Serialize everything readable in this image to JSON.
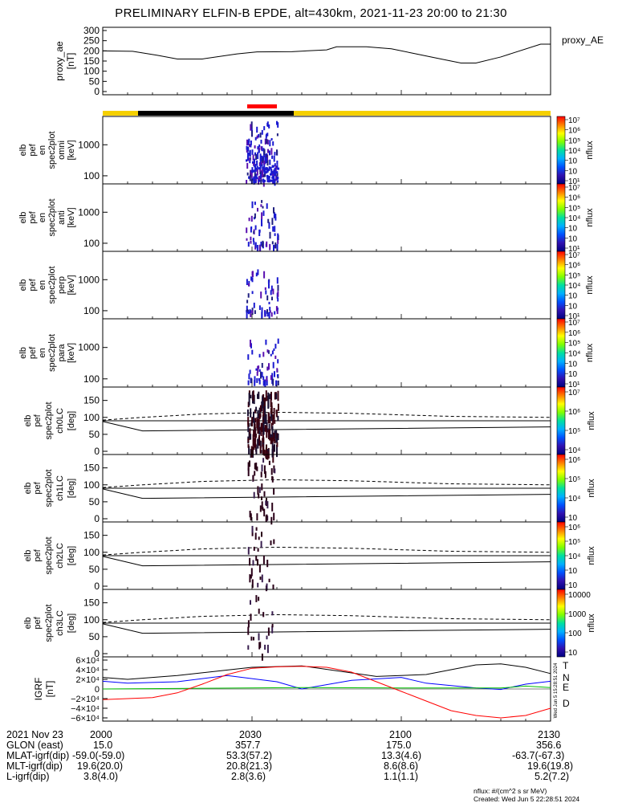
{
  "title": "PRELIMINARY ELFIN-B EPDE, alt=430km, 2021-11-23 20:00 to 21:30",
  "chart_data": [
    {
      "type": "line",
      "panel": "proxy_ae",
      "ylabel": [
        "proxy_ae",
        "[nT]"
      ],
      "ylim": [
        0,
        300
      ],
      "yticks": [
        "300",
        "250",
        "200",
        "150",
        "100",
        "50",
        "0"
      ],
      "series": [
        {
          "name": "proxy_AE",
          "x": [
            0,
            6,
            11,
            15,
            20,
            27,
            31,
            38,
            45,
            47,
            53,
            58,
            62,
            68,
            72,
            75,
            80,
            88,
            90
          ],
          "y": [
            200,
            198,
            178,
            160,
            160,
            185,
            195,
            196,
            205,
            220,
            220,
            210,
            190,
            160,
            140,
            140,
            170,
            233,
            233
          ]
        }
      ]
    },
    {
      "type": "heatmap",
      "panel": "spec2plot_omni",
      "ylabel": [
        "elb",
        "pef",
        "en",
        "spec2plot",
        "omni",
        "[keV]"
      ],
      "yticks": [
        "1000",
        "100"
      ],
      "colorbar": {
        "label": "nflux",
        "ticks": [
          "10⁷",
          "10⁶",
          "10⁵",
          "10⁴",
          "10⁳",
          "10⁲",
          "10¹"
        ]
      }
    },
    {
      "type": "heatmap",
      "panel": "spec2plot_anti",
      "ylabel": [
        "elb",
        "pef",
        "en",
        "spec2plot",
        "anti",
        "[keV]"
      ],
      "yticks": [
        "1000",
        "100"
      ],
      "colorbar": {
        "label": "nflux",
        "ticks": [
          "10⁷",
          "10⁶",
          "10⁵",
          "10⁴",
          "10⁳",
          "10⁲",
          "10¹"
        ]
      }
    },
    {
      "type": "heatmap",
      "panel": "spec2plot_perp",
      "ylabel": [
        "elb",
        "pef",
        "en",
        "spec2plot",
        "perp",
        "[keV]"
      ],
      "yticks": [
        "1000",
        "100"
      ],
      "colorbar": {
        "label": "nflux",
        "ticks": [
          "10⁷",
          "10⁶",
          "10⁵",
          "10⁴",
          "10⁳",
          "10⁲",
          "10¹"
        ]
      }
    },
    {
      "type": "heatmap",
      "panel": "spec2plot_para",
      "ylabel": [
        "elb",
        "pef",
        "en",
        "spec2plot",
        "para",
        "[keV]"
      ],
      "yticks": [
        "1000",
        "100"
      ],
      "colorbar": {
        "label": "nflux",
        "ticks": [
          "10⁷",
          "10⁶",
          "10⁵",
          "10⁴",
          "10⁳",
          "10⁲",
          "10¹"
        ]
      }
    },
    {
      "type": "heatmap",
      "panel": "spec2plot_ch0LC",
      "ylabel": [
        "elb",
        "pef",
        "spec2plot",
        "ch0LC",
        "[deg]"
      ],
      "yticks": [
        "150",
        "100",
        "50",
        "0"
      ],
      "colorbar": {
        "label": "nflux",
        "ticks": [
          "10⁷",
          "10⁶",
          "10⁵",
          "10⁴"
        ]
      }
    },
    {
      "type": "heatmap",
      "panel": "spec2plot_ch1LC",
      "ylabel": [
        "elb",
        "pef",
        "spec2plot",
        "ch1LC",
        "[deg]"
      ],
      "yticks": [
        "150",
        "100",
        "50",
        "0"
      ],
      "colorbar": {
        "label": "nflux",
        "ticks": [
          "10⁶",
          "10⁵",
          "10⁴",
          "10⁳"
        ]
      }
    },
    {
      "type": "heatmap",
      "panel": "spec2plot_ch2LC",
      "ylabel": [
        "elb",
        "pef",
        "spec2plot",
        "ch2LC",
        "[deg]"
      ],
      "yticks": [
        "150",
        "100",
        "50",
        "0"
      ],
      "colorbar": {
        "label": "nflux",
        "ticks": [
          "10⁶",
          "10⁵",
          "10⁴",
          "10⁳",
          "10⁲"
        ]
      }
    },
    {
      "type": "heatmap",
      "panel": "spec2plot_ch3LC",
      "ylabel": [
        "elb",
        "pef",
        "spec2plot",
        "ch3LC",
        "[deg]"
      ],
      "yticks": [
        "150",
        "100",
        "50",
        "0"
      ],
      "colorbar": {
        "label": "nflux",
        "ticks": [
          "10000",
          "1000",
          "100",
          "10"
        ]
      }
    },
    {
      "type": "line",
      "panel": "IGRF",
      "ylabel": [
        "IGRF",
        "[nT]"
      ],
      "ylim": [
        -60000,
        60000
      ],
      "yticks": [
        "6×10⁴",
        "4×10⁴",
        "2×10⁴",
        "0",
        "−2×10⁴",
        "−4×10⁴",
        "−6×10⁴"
      ],
      "series": [
        {
          "name": "T",
          "color": "#000000",
          "x": [
            0,
            5,
            15,
            30,
            40,
            55,
            65,
            75,
            80,
            85,
            90
          ],
          "y": [
            24000,
            20000,
            28000,
            45000,
            48000,
            26000,
            30000,
            50000,
            52000,
            45000,
            32000
          ]
        },
        {
          "name": "N",
          "color": "#0000ff",
          "x": [
            0,
            5,
            15,
            25,
            35,
            40,
            50,
            60,
            65,
            75,
            80,
            85,
            90
          ],
          "y": [
            16000,
            12000,
            15000,
            28000,
            15000,
            0,
            18000,
            24000,
            12000,
            2000,
            -1000,
            10000,
            16000
          ]
        },
        {
          "name": "E",
          "color": "#00c000",
          "x": [
            0,
            20,
            40,
            60,
            80,
            85,
            90
          ],
          "y": [
            0,
            1500,
            3000,
            2000,
            2000,
            6000,
            3000
          ]
        },
        {
          "name": "D",
          "color": "#ff0000",
          "x": [
            0,
            5,
            10,
            15,
            20,
            25,
            30,
            35,
            40,
            45,
            50,
            55,
            60,
            65,
            70,
            75,
            80,
            85,
            90
          ],
          "y": [
            -22000,
            -20000,
            -18000,
            -8000,
            10000,
            30000,
            43000,
            46000,
            47000,
            45000,
            35000,
            15000,
            -5000,
            -25000,
            -45000,
            -55000,
            -60000,
            -55000,
            -40000
          ]
        }
      ]
    }
  ],
  "orbit_bar": {
    "colors": {
      "yellow": "#f5d000",
      "black": "#000000",
      "red": "#ff0000"
    }
  },
  "colorbar_colors": [
    "#ff0000",
    "#ff7f00",
    "#ffff00",
    "#80ff00",
    "#00e0a0",
    "#00b0ff",
    "#0050ff",
    "#3010b0",
    "#000080"
  ],
  "spectrogram_colors": {
    "blue": "#1a1ad0",
    "purple": "#5a10b0",
    "navy": "#202080"
  },
  "side_stamp": "Wed Jun 5 15:28:51 2024",
  "footer": {
    "rows": [
      {
        "label": "2021 Nov 23",
        "values": [
          "2000",
          "2030",
          "2100",
          "2130"
        ]
      },
      {
        "label": "GLON (east)",
        "values": [
          "15.0",
          "357.7",
          "175.0",
          "356.6"
        ]
      },
      {
        "label": "MLAT-igrf(dip)",
        "values": [
          "-59.0(-59.0)",
          "53.3(57.2)",
          "13.3(4.6)",
          "-63.7(-67.3)"
        ]
      },
      {
        "label": "MLT-igrf(dip)",
        "values": [
          "19.6(20.0)",
          "20.8(21.3)",
          "8.6(8.6)",
          "19.6(19.8)"
        ]
      },
      {
        "label": "L-igrf(dip)",
        "values": [
          "3.8(4.0)",
          "2.8(3.6)",
          "1.1(1.1)",
          "5.2(7.2)"
        ]
      }
    ],
    "units_note": "nflux: #/(cm^2 s sr MeV)",
    "created": "Created: Wed Jun  5 22:28:51 2024"
  }
}
